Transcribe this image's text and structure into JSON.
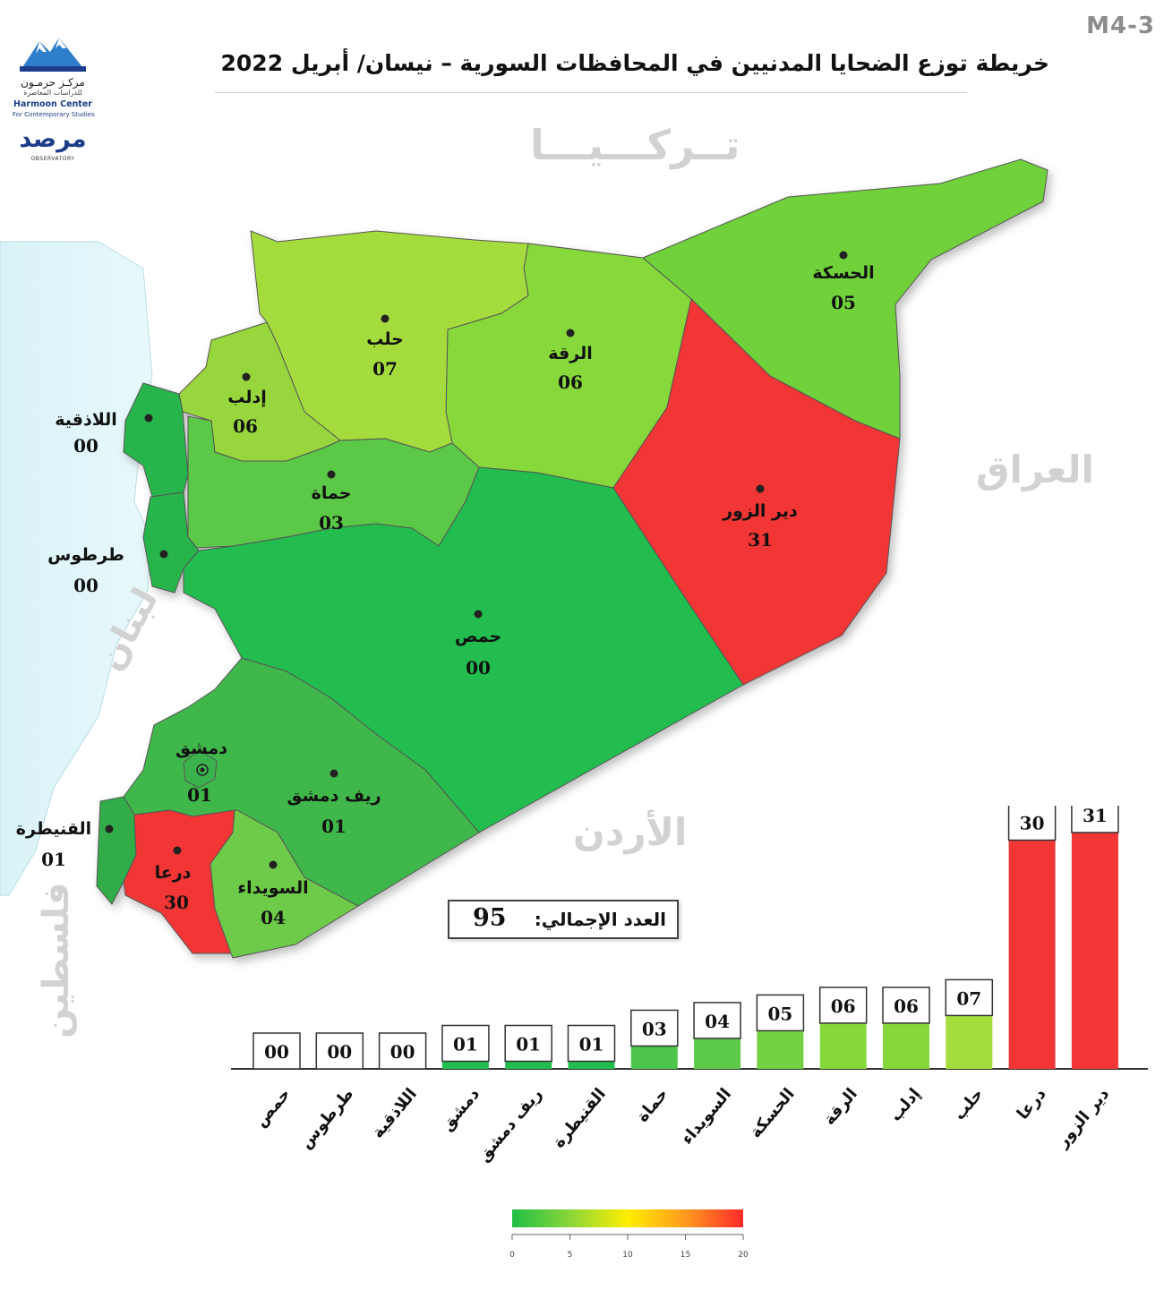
{
  "header": {
    "code": "M4-3",
    "title": "خريطة توزع الضحايا المدنيين في المحافظات السورية – نيسان/ أبريل 2022"
  },
  "logos": {
    "harmoon_ar": "مركـز حرمـون",
    "harmoon_ar_sub": "للدراسات المعاصرة",
    "harmoon_en": "Harmoon Center",
    "harmoon_en_sub": "For Contemporary Studies",
    "observatory_ar": "مرصد",
    "observatory_en": "OBSERVATORY"
  },
  "countries": {
    "turkey": "تــركـــيـــا",
    "iraq": "العراق",
    "jordan": "الأردن",
    "lebanon": "لبنان",
    "palestine": "فلسطين"
  },
  "total": {
    "label": "العدد الإجمالي:",
    "value": "95"
  },
  "map": {
    "governorates": [
      {
        "id": "hasakah",
        "name": "الحسكة",
        "value": "05",
        "color": "#6fd13a"
      },
      {
        "id": "aleppo",
        "name": "حلب",
        "value": "07",
        "color": "#a5dc3e"
      },
      {
        "id": "raqqa",
        "name": "الرقة",
        "value": "06",
        "color": "#86d83a"
      },
      {
        "id": "idlib",
        "name": "إدلب",
        "value": "06",
        "color": "#97d63e"
      },
      {
        "id": "latakia",
        "name": "اللاذقية",
        "value": "00",
        "color": "#28b44b"
      },
      {
        "id": "hama",
        "name": "حماة",
        "value": "03",
        "color": "#5bc847"
      },
      {
        "id": "deir_ez_zor",
        "name": "دير الزور",
        "value": "31",
        "color": "#f23535"
      },
      {
        "id": "tartus",
        "name": "طرطوس",
        "value": "00",
        "color": "#28b44b"
      },
      {
        "id": "homs",
        "name": "حمص",
        "value": "00",
        "color": "#22bc4f"
      },
      {
        "id": "damascus",
        "name": "دمشق",
        "value": "01",
        "color": "#3bb34e"
      },
      {
        "id": "rif_dimashq",
        "name": "ريف دمشق",
        "value": "01",
        "color": "#3fb74c"
      },
      {
        "id": "quneitra",
        "name": "القنيطرة",
        "value": "01",
        "color": "#31ac49"
      },
      {
        "id": "daraa",
        "name": "درعا",
        "value": "30",
        "color": "#f23535"
      },
      {
        "id": "suwayda",
        "name": "السويداء",
        "value": "04",
        "color": "#6ecb4a"
      }
    ]
  },
  "chart_data": {
    "type": "bar",
    "title": "",
    "xlabel": "",
    "ylabel": "",
    "categories": [
      "حمص",
      "طرطوس",
      "اللاذقية",
      "دمشق",
      "ريف دمشق",
      "القنيطرة",
      "حماة",
      "السويداء",
      "الحسكة",
      "الرقة",
      "إدلب",
      "حلب",
      "درعا",
      "دير الزور"
    ],
    "values": [
      0,
      0,
      0,
      1,
      1,
      1,
      3,
      4,
      5,
      6,
      6,
      7,
      30,
      31
    ],
    "value_labels": [
      "00",
      "00",
      "00",
      "01",
      "01",
      "01",
      "03",
      "04",
      "05",
      "06",
      "06",
      "07",
      "30",
      "31"
    ],
    "colors": [
      "#22bc4f",
      "#22bc4f",
      "#22bc4f",
      "#22bc4f",
      "#22bc4f",
      "#22bc4f",
      "#4cc54a",
      "#5dc948",
      "#73d040",
      "#86d83a",
      "#86d83a",
      "#a5dc3e",
      "#f23535",
      "#f23535"
    ],
    "grid": false,
    "legend": "none"
  },
  "color_scale": {
    "ticks": [
      "0",
      "5",
      "10",
      "15",
      "20"
    ],
    "tick_values": [
      0,
      5,
      10,
      15,
      20
    ],
    "max": 20,
    "colors": [
      "#1fbf45",
      "#8ad63a",
      "#ffee00",
      "#ff9a1f",
      "#ff2a2a"
    ]
  }
}
